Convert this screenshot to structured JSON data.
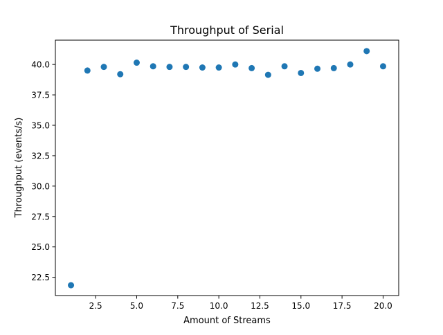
{
  "chart_data": {
    "type": "scatter",
    "title": "Throughput of Serial",
    "xlabel": "Amount of Streams",
    "ylabel": "Throughput (events/s)",
    "xlim": [
      0.05,
      20.95
    ],
    "ylim": [
      21.0,
      42.0
    ],
    "x_ticks": [
      2.5,
      5.0,
      7.5,
      10.0,
      12.5,
      15.0,
      17.5,
      20.0
    ],
    "x_tick_labels": [
      "2.5",
      "5.0",
      "7.5",
      "10.0",
      "12.5",
      "15.0",
      "17.5",
      "20.0"
    ],
    "y_ticks": [
      22.5,
      25.0,
      27.5,
      30.0,
      32.5,
      35.0,
      37.5,
      40.0
    ],
    "y_tick_labels": [
      "22.5",
      "25.0",
      "27.5",
      "30.0",
      "32.5",
      "35.0",
      "37.5",
      "40.0"
    ],
    "grid": false,
    "legend": "none",
    "marker_color": "#1f77b4",
    "series": [
      {
        "x": [
          1,
          2,
          3,
          4,
          5,
          6,
          7,
          8,
          9,
          10,
          11,
          12,
          13,
          14,
          15,
          16,
          17,
          18,
          19,
          20
        ],
        "y": [
          21.85,
          39.5,
          39.8,
          39.2,
          40.15,
          39.85,
          39.8,
          39.8,
          39.75,
          39.75,
          40.0,
          39.7,
          39.15,
          39.85,
          39.3,
          39.65,
          39.7,
          40.0,
          41.1,
          39.85
        ]
      }
    ]
  }
}
